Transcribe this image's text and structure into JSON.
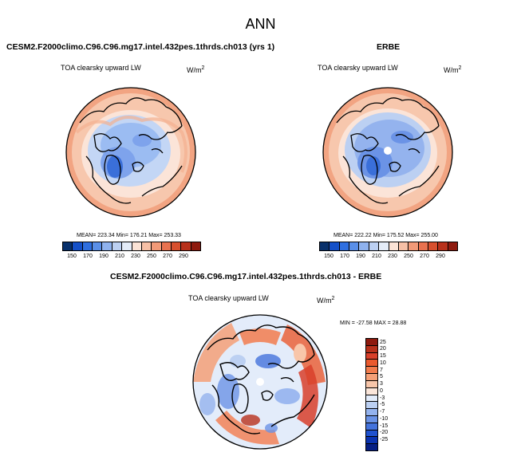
{
  "title": "ANN",
  "left_panel": {
    "header": "CESM2.F2000climo.C96.C96.mg17.intel.432pes.1thrds.ch013 (yrs 1)",
    "variable": "TOA clearsky upward LW",
    "units_base": "W/m",
    "units_exp": "2",
    "stats": "MEAN= 223.34  Min= 176.21  Max= 253.33"
  },
  "right_panel": {
    "header": "ERBE",
    "variable": "TOA clearsky upward LW",
    "units_base": "W/m",
    "units_exp": "2",
    "stats": "MEAN= 222.22  Min= 175.52  Max= 255.00"
  },
  "diff_panel": {
    "header": "CESM2.F2000climo.C96.C96.mg17.intel.432pes.1thrds.ch013 - ERBE",
    "variable": "TOA clearsky upward LW",
    "units_base": "W/m",
    "units_exp": "2",
    "stats": "MIN = -27.58 MAX =  28.88"
  },
  "colorbar_top": {
    "ticks": [
      "150",
      "170",
      "190",
      "210",
      "230",
      "250",
      "270",
      "290"
    ],
    "colors": [
      "#08306b",
      "#1450c8",
      "#2f6fe0",
      "#5a8fe8",
      "#8fb2ee",
      "#bcd0f2",
      "#e4ecf8",
      "#fbe3d6",
      "#f7c0a6",
      "#f29a78",
      "#e9724f",
      "#d8502e",
      "#b8311b",
      "#8e1a0e"
    ]
  },
  "colorbar_diff": {
    "labels": [
      "25",
      "20",
      "15",
      "10",
      "7",
      "5",
      "3",
      "0",
      "-3",
      "-5",
      "-7",
      "-10",
      "-15",
      "-20",
      "-25"
    ],
    "colors": [
      "#8e1a0e",
      "#b8311b",
      "#d8402a",
      "#ea5a2e",
      "#f27c4d",
      "#f5a077",
      "#f8c6aa",
      "#fbe6da",
      "#e3ecfa",
      "#bcd0f2",
      "#94b3ee",
      "#6b93e6",
      "#4473dc",
      "#1f52cf",
      "#0a33b0",
      "#061f84"
    ]
  }
}
